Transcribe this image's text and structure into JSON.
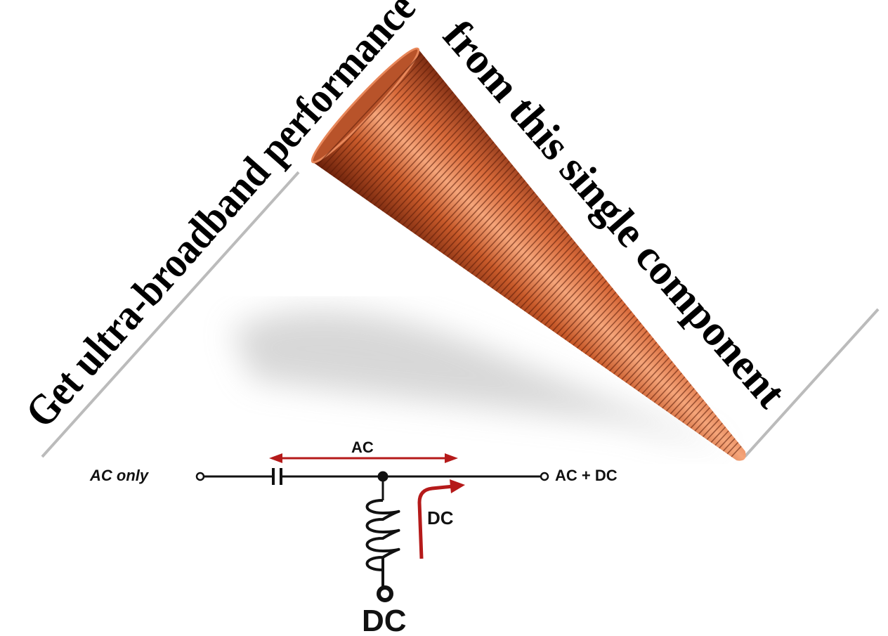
{
  "headline": {
    "left": "Get ultra-broadband performance",
    "right": "from this single component"
  },
  "schematic": {
    "input_label": "AC only",
    "ac_arrow_label": "AC",
    "output_label": "AC + DC",
    "dc_arrow_label": "DC",
    "dc_port_label": "DC"
  }
}
